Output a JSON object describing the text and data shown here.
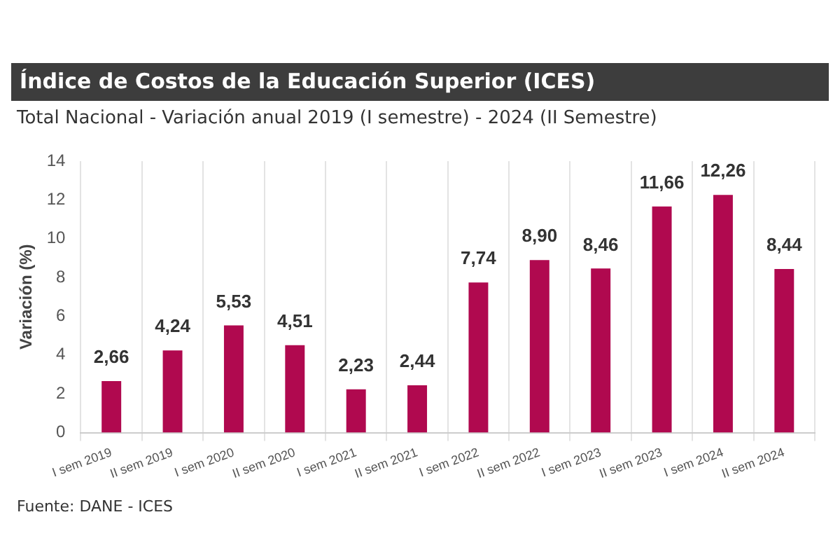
{
  "chart_data": {
    "type": "bar",
    "title": "Índice de Costos de la Educación Superior (ICES)",
    "subtitle": "Total Nacional - Variación anual 2019 (I semestre) - 2024 (II Semestre)",
    "ylabel": "Variación (%)",
    "categories": [
      "I sem 2019",
      "II sem 2019",
      "I sem 2020",
      "II sem 2020",
      "I sem 2021",
      "II sem 2021",
      "I sem 2022",
      "II sem 2022",
      "I sem 2023",
      "II sem 2023",
      "I sem 2024",
      "II sem 2024"
    ],
    "values": [
      2.66,
      4.24,
      5.53,
      4.51,
      2.23,
      2.44,
      7.74,
      8.9,
      8.46,
      11.66,
      12.26,
      8.44
    ],
    "value_labels": [
      "2,66",
      "4,24",
      "5,53",
      "4,51",
      "2,23",
      "2,44",
      "7,74",
      "8,90",
      "8,46",
      "11,66",
      "12,26",
      "8,44"
    ],
    "color": "#b0094f",
    "ylim": [
      0,
      14
    ],
    "yticks": [
      0,
      2,
      4,
      6,
      8,
      10,
      12,
      14
    ],
    "grid": "x",
    "legend": false,
    "annotations": [
      "Fuente: DANE - ICES"
    ]
  }
}
